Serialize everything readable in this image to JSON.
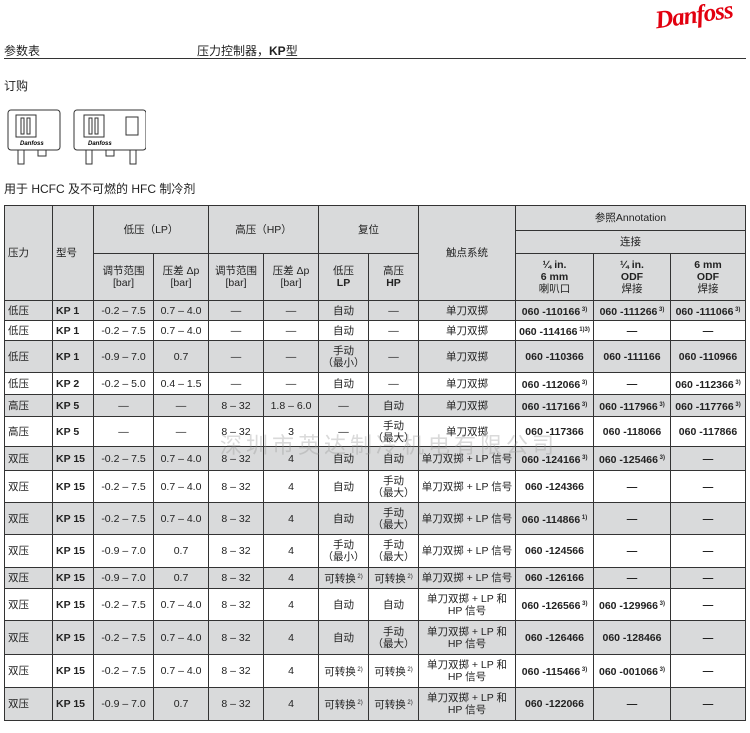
{
  "header": {
    "logo": "Danfoss",
    "doc_type": "参数表",
    "title_prefix": "压力控制器，",
    "title_bold": "KP",
    "title_suffix": "型"
  },
  "section": "订购",
  "refrigerant_note": "用于 HCFC 及不可燃的 HFC 制冷剂",
  "watermark": "深圳市英达制冷机电有限公司",
  "table": {
    "headers": {
      "pressure": "压力",
      "model": "型号",
      "lp": "低压（LP）",
      "hp": "高压（HP）",
      "reset": "复位",
      "contact": "触点系统",
      "annotation": "参照Annotation",
      "connection": "连接",
      "range": "调节范围",
      "diff": "压差 Δp",
      "bar": "[bar]",
      "reset_lp1": "低压",
      "reset_lp2": "LP",
      "reset_hp1": "高压",
      "reset_hp2": "HP",
      "conn1_a": "¼ in.",
      "conn1_b": "6 mm",
      "conn1_c": "喇叭口",
      "conn2_a": "¼ in.",
      "conn2_b": "ODF",
      "conn2_c": "焊接",
      "conn3_a": "6 mm",
      "conn3_b": "ODF",
      "conn3_c": "焊接"
    },
    "rows": [
      {
        "p": "低压",
        "m": "KP 1",
        "lr": "-0.2 – 7.5",
        "ld": "0.7 – 4.0",
        "hr": "—",
        "hd": "—",
        "rl": "自动",
        "rh": "—",
        "cs": "单刀双掷",
        "c1": "060 -110166",
        "c1n": "3)",
        "c2": "060 -111266",
        "c2n": "3)",
        "c3": "060 -111066",
        "c3n": "3)"
      },
      {
        "p": "低压",
        "m": "KP 1",
        "lr": "-0.2 – 7.5",
        "ld": "0.7 – 4.0",
        "hr": "—",
        "hd": "—",
        "rl": "自动",
        "rh": "—",
        "cs": "单刀双掷",
        "c1": "060 -114166",
        "c1n": "1)3)",
        "c2": "—",
        "c2n": "",
        "c3": "—",
        "c3n": ""
      },
      {
        "p": "低压",
        "m": "KP 1",
        "lr": "-0.9 – 7.0",
        "ld": "0.7",
        "hr": "—",
        "hd": "—",
        "rl": "手动\n（最小）",
        "rh": "—",
        "cs": "单刀双掷",
        "c1": "060 -110366",
        "c1n": "",
        "c2": "060 -111166",
        "c2n": "",
        "c3": "060 -110966",
        "c3n": ""
      },
      {
        "p": "低压",
        "m": "KP 2",
        "lr": "-0.2 – 5.0",
        "ld": "0.4 – 1.5",
        "hr": "—",
        "hd": "—",
        "rl": "自动",
        "rh": "—",
        "cs": "单刀双掷",
        "c1": "060 -112066",
        "c1n": "3)",
        "c2": "—",
        "c2n": "",
        "c3": "060 -112366",
        "c3n": "3)"
      },
      {
        "p": "高压",
        "m": "KP 5",
        "lr": "—",
        "ld": "—",
        "hr": "8 – 32",
        "hd": "1.8 – 6.0",
        "rl": "—",
        "rh": "自动",
        "cs": "单刀双掷",
        "c1": "060 -117166",
        "c1n": "3)",
        "c2": "060 -117966",
        "c2n": "3)",
        "c3": "060 -117766",
        "c3n": "3)"
      },
      {
        "p": "高压",
        "m": "KP 5",
        "lr": "—",
        "ld": "—",
        "hr": "8 – 32",
        "hd": "3",
        "rl": "—",
        "rh": "手动\n（最大）",
        "cs": "单刀双掷",
        "c1": "060 -117366",
        "c1n": "",
        "c2": "060 -118066",
        "c2n": "",
        "c3": "060 -117866",
        "c3n": ""
      },
      {
        "p": "双压",
        "m": "KP 15",
        "lr": "-0.2 – 7.5",
        "ld": "0.7 – 4.0",
        "hr": "8 – 32",
        "hd": "4",
        "rl": "自动",
        "rh": "自动",
        "cs": "单刀双掷 + LP 信号",
        "c1": "060 -124166",
        "c1n": "3)",
        "c2": "060 -125466",
        "c2n": "3)",
        "c3": "—",
        "c3n": ""
      },
      {
        "p": "双压",
        "m": "KP 15",
        "lr": "-0.2 – 7.5",
        "ld": "0.7 – 4.0",
        "hr": "8 – 32",
        "hd": "4",
        "rl": "自动",
        "rh": "手动\n（最大）",
        "cs": "单刀双掷 + LP 信号",
        "c1": "060 -124366",
        "c1n": "",
        "c2": "—",
        "c2n": "",
        "c3": "—",
        "c3n": ""
      },
      {
        "p": "双压",
        "m": "KP 15",
        "lr": "-0.2 – 7.5",
        "ld": "0.7 – 4.0",
        "hr": "8 – 32",
        "hd": "4",
        "rl": "自动",
        "rh": "手动\n（最大）",
        "cs": "单刀双掷 + LP 信号",
        "c1": "060 -114866",
        "c1n": "1)",
        "c2": "—",
        "c2n": "",
        "c3": "—",
        "c3n": ""
      },
      {
        "p": "双压",
        "m": "KP 15",
        "lr": "-0.9 – 7.0",
        "ld": "0.7",
        "hr": "8 – 32",
        "hd": "4",
        "rl": "手动\n（最小）",
        "rh": "手动\n（最大）",
        "cs": "单刀双掷 + LP 信号",
        "c1": "060 -124566",
        "c1n": "",
        "c2": "—",
        "c2n": "",
        "c3": "—",
        "c3n": ""
      },
      {
        "p": "双压",
        "m": "KP 15",
        "lr": "-0.9 – 7.0",
        "ld": "0.7",
        "hr": "8 – 32",
        "hd": "4",
        "rl": "可转换",
        "rln": "2)",
        "rh": "可转换",
        "rhn": "2)",
        "cs": "单刀双掷 + LP 信号",
        "c1": "060 -126166",
        "c1n": "",
        "c2": "—",
        "c2n": "",
        "c3": "—",
        "c3n": ""
      },
      {
        "p": "双压",
        "m": "KP 15",
        "lr": "-0.2 – 7.5",
        "ld": "0.7 – 4.0",
        "hr": "8 – 32",
        "hd": "4",
        "rl": "自动",
        "rh": "自动",
        "cs": "单刀双掷 + LP 和\nHP 信号",
        "c1": "060 -126566",
        "c1n": "3)",
        "c2": "060 -129966",
        "c2n": "3)",
        "c3": "—",
        "c3n": ""
      },
      {
        "p": "双压",
        "m": "KP 15",
        "lr": "-0.2 – 7.5",
        "ld": "0.7 – 4.0",
        "hr": "8 – 32",
        "hd": "4",
        "rl": "自动",
        "rh": "手动\n（最大）",
        "cs": "单刀双掷 + LP 和\nHP 信号",
        "c1": "060 -126466",
        "c1n": "",
        "c2": "060 -128466",
        "c2n": "",
        "c3": "—",
        "c3n": ""
      },
      {
        "p": "双压",
        "m": "KP 15",
        "lr": "-0.2 – 7.5",
        "ld": "0.7 – 4.0",
        "hr": "8 – 32",
        "hd": "4",
        "rl": "可转换",
        "rln": "2)",
        "rh": "可转换",
        "rhn": "2)",
        "cs": "单刀双掷 + LP 和\nHP 信号",
        "c1": "060 -115466",
        "c1n": "3)",
        "c2": "060 -001066",
        "c2n": "3)",
        "c3": "—",
        "c3n": ""
      },
      {
        "p": "双压",
        "m": "KP 15",
        "lr": "-0.9 – 7.0",
        "ld": "0.7",
        "hr": "8 – 32",
        "hd": "4",
        "rl": "可转换",
        "rln": "2)",
        "rh": "可转换",
        "rhn": "2)",
        "cs": "单刀双掷 + LP 和\nHP 信号",
        "c1": "060 -122066",
        "c1n": "",
        "c2": "—",
        "c2n": "",
        "c3": "—",
        "c3n": ""
      }
    ]
  }
}
